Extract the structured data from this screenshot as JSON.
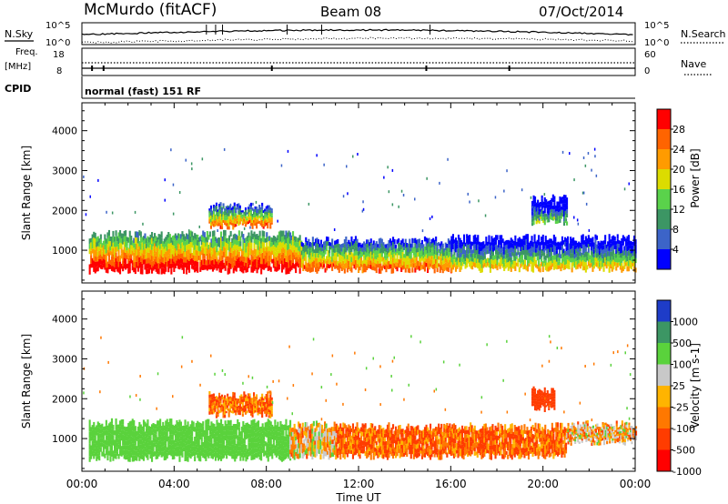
{
  "header": {
    "station": "McMurdo (fitACF)",
    "beam": "Beam 08",
    "date": "07/Oct/2014"
  },
  "top_panels": {
    "nsky_label": "N.Sky",
    "nsearch_label": "N.Search",
    "nsky_ticks": [
      "10^5",
      "10^0"
    ],
    "nsearch_ticks": [
      "10^5",
      "10^0"
    ],
    "freq_label": "Freq.",
    "freq_unit": "[MHz]",
    "freq_ticks": [
      "18",
      "8"
    ],
    "nave_label": "Nave",
    "nave_ticks": [
      "60",
      "0"
    ],
    "cpid_label": "CPID",
    "cpid_text": "normal (fast) 151 RF"
  },
  "chart_data": [
    {
      "type": "heatmap",
      "name": "power",
      "ylabel": "Slant Range [km]",
      "xlabel": "",
      "x_ticks": [
        "00:00",
        "04:00",
        "08:00",
        "12:00",
        "16:00",
        "20:00",
        "00:00"
      ],
      "y_ticks": [
        1000,
        2000,
        3000,
        4000
      ],
      "ylim": [
        180,
        4700
      ],
      "colorbar": {
        "label": "Power [dB]",
        "ticks": [
          4,
          8,
          12,
          16,
          20,
          24,
          28
        ],
        "colors": [
          "#0000ff",
          "#3c64c8",
          "#3c9664",
          "#5ad24b",
          "#dcdc00",
          "#ff9b00",
          "#ff6400",
          "#ff0000"
        ],
        "range": [
          0,
          32
        ]
      },
      "bands": [
        {
          "from_h": 0.3,
          "to_h": 9.5,
          "lo_km": 480,
          "hi_km": 1400,
          "value": 24
        },
        {
          "from_h": 9.5,
          "to_h": 16,
          "lo_km": 500,
          "hi_km": 1250,
          "value": 18
        },
        {
          "from_h": 16,
          "to_h": 24,
          "lo_km": 520,
          "hi_km": 1300,
          "value": 12
        },
        {
          "from_h": 5.5,
          "to_h": 8.2,
          "lo_km": 1600,
          "hi_km": 2100,
          "value": 18
        },
        {
          "from_h": 19.5,
          "to_h": 21,
          "lo_km": 1700,
          "hi_km": 2300,
          "value": 6
        }
      ]
    },
    {
      "type": "heatmap",
      "name": "velocity",
      "ylabel": "Slant Range [km]",
      "xlabel": "Time UT",
      "x_ticks": [
        "00:00",
        "04:00",
        "08:00",
        "12:00",
        "16:00",
        "20:00",
        "00:00"
      ],
      "y_ticks": [
        1000,
        2000,
        3000,
        4000
      ],
      "ylim": [
        180,
        4700
      ],
      "colorbar": {
        "label": "Velocity [m s-1]",
        "ticks": [
          1000,
          500,
          100,
          25,
          -25,
          -100,
          -500,
          -1000
        ],
        "colors": [
          "#1e3cc8",
          "#3c9664",
          "#5ad23c",
          "#c8c8c8",
          "#ffb400",
          "#ff7800",
          "#ff3c00",
          "#ff0000"
        ]
      },
      "bands": [
        {
          "from_h": 0.3,
          "to_h": 9,
          "lo_km": 500,
          "hi_km": 1400,
          "value": 300
        },
        {
          "from_h": 9,
          "to_h": 11,
          "lo_km": 550,
          "hi_km": 1350,
          "value": 0
        },
        {
          "from_h": 11,
          "to_h": 21,
          "lo_km": 550,
          "hi_km": 1300,
          "value": -100
        },
        {
          "from_h": 21,
          "to_h": 24,
          "lo_km": 900,
          "hi_km": 1350,
          "value": 0
        },
        {
          "from_h": 5.5,
          "to_h": 8.2,
          "lo_km": 1600,
          "hi_km": 2100,
          "value": -100
        },
        {
          "from_h": 19.5,
          "to_h": 20.5,
          "lo_km": 1750,
          "hi_km": 2200,
          "value": -300
        }
      ]
    }
  ]
}
